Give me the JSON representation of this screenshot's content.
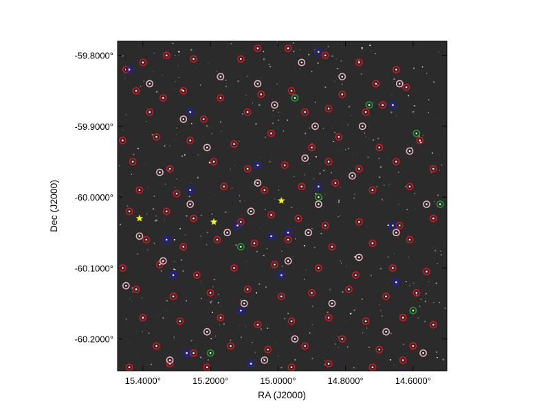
{
  "chart_data": {
    "type": "scatter",
    "title": "",
    "xlabel": "RA (J2000)",
    "ylabel": "Dec (J2000)",
    "xlim": [
      15.475,
      14.5
    ],
    "ylim": [
      -60.245,
      -59.78
    ],
    "x_reversed": true,
    "grid": false,
    "x_ticks": [
      {
        "value": 15.4,
        "label": "15.4000°"
      },
      {
        "value": 15.2,
        "label": "15.2000°"
      },
      {
        "value": 15.0,
        "label": "15.0000°"
      },
      {
        "value": 14.8,
        "label": "14.8000°"
      },
      {
        "value": 14.6,
        "label": "14.6000°"
      }
    ],
    "y_ticks": [
      {
        "value": -59.8,
        "label": "-59.8000°"
      },
      {
        "value": -59.9,
        "label": "-59.9000°"
      },
      {
        "value": -60.0,
        "label": "-60.0000°"
      },
      {
        "value": -60.1,
        "label": "-60.1000°"
      },
      {
        "value": -60.2,
        "label": "-60.2000°"
      }
    ],
    "background_color": "#2b2b2b",
    "series": [
      {
        "marker": "circle",
        "color": "#e0141e",
        "points": [
          [
            15.45,
            -59.82
          ],
          [
            15.4,
            -59.81
          ],
          [
            15.33,
            -59.8
          ],
          [
            15.25,
            -59.805
          ],
          [
            15.11,
            -59.805
          ],
          [
            15.06,
            -59.79
          ],
          [
            14.97,
            -59.79
          ],
          [
            14.86,
            -59.8
          ],
          [
            14.76,
            -59.81
          ],
          [
            14.65,
            -59.82
          ],
          [
            15.42,
            -59.85
          ],
          [
            15.34,
            -59.86
          ],
          [
            15.28,
            -59.85
          ],
          [
            15.17,
            -59.86
          ],
          [
            15.05,
            -59.855
          ],
          [
            14.96,
            -59.85
          ],
          [
            14.81,
            -59.855
          ],
          [
            14.71,
            -59.84
          ],
          [
            14.62,
            -59.845
          ],
          [
            15.38,
            -59.88
          ],
          [
            15.22,
            -59.89
          ],
          [
            15.09,
            -59.88
          ],
          [
            14.92,
            -59.88
          ],
          [
            14.85,
            -59.875
          ],
          [
            14.74,
            -59.88
          ],
          [
            14.69,
            -59.87
          ],
          [
            15.46,
            -59.92
          ],
          [
            15.36,
            -59.915
          ],
          [
            15.26,
            -59.92
          ],
          [
            15.13,
            -59.925
          ],
          [
            15.02,
            -59.91
          ],
          [
            14.9,
            -59.93
          ],
          [
            14.82,
            -59.915
          ],
          [
            14.7,
            -59.93
          ],
          [
            14.58,
            -59.92
          ],
          [
            15.43,
            -59.95
          ],
          [
            15.32,
            -59.96
          ],
          [
            15.19,
            -59.95
          ],
          [
            15.09,
            -59.96
          ],
          [
            14.98,
            -59.955
          ],
          [
            14.85,
            -59.95
          ],
          [
            14.76,
            -59.96
          ],
          [
            14.65,
            -59.95
          ],
          [
            14.54,
            -59.96
          ],
          [
            15.41,
            -59.99
          ],
          [
            15.3,
            -59.995
          ],
          [
            15.16,
            -59.985
          ],
          [
            15.04,
            -59.99
          ],
          [
            14.93,
            -59.985
          ],
          [
            14.83,
            -59.98
          ],
          [
            14.72,
            -59.99
          ],
          [
            14.61,
            -59.985
          ],
          [
            15.44,
            -60.02
          ],
          [
            15.33,
            -60.02
          ],
          [
            15.25,
            -60.03
          ],
          [
            15.11,
            -60.035
          ],
          [
            15.02,
            -60.025
          ],
          [
            14.94,
            -60.03
          ],
          [
            14.86,
            -60.04
          ],
          [
            14.76,
            -60.035
          ],
          [
            14.64,
            -60.04
          ],
          [
            14.54,
            -60.03
          ],
          [
            15.39,
            -60.06
          ],
          [
            15.28,
            -60.07
          ],
          [
            15.18,
            -60.06
          ],
          [
            15.07,
            -60.065
          ],
          [
            14.97,
            -60.06
          ],
          [
            14.84,
            -60.07
          ],
          [
            14.72,
            -60.065
          ],
          [
            14.61,
            -60.06
          ],
          [
            15.46,
            -60.1
          ],
          [
            15.35,
            -60.095
          ],
          [
            15.24,
            -60.11
          ],
          [
            15.13,
            -60.1
          ],
          [
            15.01,
            -60.095
          ],
          [
            14.88,
            -60.1
          ],
          [
            14.77,
            -60.11
          ],
          [
            14.66,
            -60.1
          ],
          [
            14.56,
            -60.105
          ],
          [
            15.42,
            -60.13
          ],
          [
            15.31,
            -60.14
          ],
          [
            15.2,
            -60.135
          ],
          [
            15.09,
            -60.13
          ],
          [
            14.99,
            -60.14
          ],
          [
            14.9,
            -60.135
          ],
          [
            14.79,
            -60.13
          ],
          [
            14.68,
            -60.14
          ],
          [
            14.59,
            -60.135
          ],
          [
            15.4,
            -60.17
          ],
          [
            15.29,
            -60.175
          ],
          [
            15.17,
            -60.17
          ],
          [
            15.06,
            -60.18
          ],
          [
            14.96,
            -60.175
          ],
          [
            14.85,
            -60.17
          ],
          [
            14.74,
            -60.175
          ],
          [
            14.63,
            -60.17
          ],
          [
            14.54,
            -60.18
          ],
          [
            15.36,
            -60.21
          ],
          [
            15.25,
            -60.22
          ],
          [
            15.14,
            -60.21
          ],
          [
            15.03,
            -60.215
          ],
          [
            14.92,
            -60.21
          ],
          [
            14.81,
            -60.2
          ],
          [
            14.7,
            -60.215
          ],
          [
            14.6,
            -60.21
          ],
          [
            15.44,
            -60.24
          ],
          [
            15.32,
            -60.235
          ],
          [
            15.21,
            -60.24
          ],
          [
            15.08,
            -60.235
          ],
          [
            14.96,
            -60.24
          ],
          [
            14.85,
            -60.235
          ],
          [
            14.72,
            -60.24
          ],
          [
            14.63,
            -60.23
          ]
        ]
      },
      {
        "marker": "circle",
        "color": "#f2b8c6",
        "points": [
          [
            15.38,
            -59.84
          ],
          [
            15.17,
            -59.83
          ],
          [
            15.06,
            -59.84
          ],
          [
            14.93,
            -59.81
          ],
          [
            14.81,
            -59.83
          ],
          [
            14.64,
            -59.84
          ],
          [
            15.28,
            -59.89
          ],
          [
            15.01,
            -59.87
          ],
          [
            14.89,
            -59.9
          ],
          [
            14.75,
            -59.9
          ],
          [
            15.21,
            -59.93
          ],
          [
            14.92,
            -59.945
          ],
          [
            14.61,
            -59.935
          ],
          [
            15.35,
            -59.965
          ],
          [
            15.06,
            -59.98
          ],
          [
            14.78,
            -59.97
          ],
          [
            15.26,
            -60.01
          ],
          [
            15.08,
            -60.02
          ],
          [
            14.88,
            -60.01
          ],
          [
            14.56,
            -60.01
          ],
          [
            15.41,
            -60.055
          ],
          [
            15.15,
            -60.05
          ],
          [
            14.91,
            -60.05
          ],
          [
            14.65,
            -60.05
          ],
          [
            15.34,
            -60.09
          ],
          [
            14.97,
            -60.09
          ],
          [
            14.76,
            -60.085
          ],
          [
            15.45,
            -60.125
          ],
          [
            15.1,
            -60.15
          ],
          [
            14.84,
            -60.15
          ],
          [
            15.21,
            -60.19
          ],
          [
            14.95,
            -60.2
          ],
          [
            14.68,
            -60.19
          ],
          [
            15.32,
            -60.23
          ],
          [
            15.04,
            -60.23
          ],
          [
            14.57,
            -60.22
          ]
        ]
      },
      {
        "marker": "circle",
        "color": "#1a1ad6",
        "points": [
          [
            15.44,
            -59.82
          ],
          [
            14.88,
            -59.795
          ],
          [
            14.66,
            -59.87
          ],
          [
            15.26,
            -59.88
          ],
          [
            15.06,
            -59.955
          ],
          [
            15.26,
            -59.99
          ],
          [
            14.88,
            -59.985
          ],
          [
            15.12,
            -60.04
          ],
          [
            15.02,
            -60.055
          ],
          [
            14.97,
            -60.05
          ],
          [
            14.66,
            -60.04
          ],
          [
            15.33,
            -60.06
          ],
          [
            15.31,
            -60.11
          ],
          [
            14.99,
            -60.11
          ],
          [
            14.65,
            -60.12
          ],
          [
            15.27,
            -60.22
          ],
          [
            15.08,
            -60.235
          ],
          [
            15.11,
            -60.16
          ]
        ]
      },
      {
        "marker": "circle",
        "color": "#1f9e2e",
        "points": [
          [
            14.95,
            -59.86
          ],
          [
            14.73,
            -59.87
          ],
          [
            14.59,
            -59.91
          ],
          [
            15.11,
            -60.07
          ],
          [
            14.88,
            -60.0
          ],
          [
            14.52,
            -60.01
          ],
          [
            14.6,
            -60.16
          ],
          [
            15.2,
            -60.22
          ]
        ]
      },
      {
        "marker": "star",
        "color": "#f5f51e",
        "points": [
          [
            15.41,
            -60.03
          ],
          [
            15.19,
            -60.035
          ],
          [
            14.99,
            -60.005
          ]
        ]
      }
    ]
  }
}
